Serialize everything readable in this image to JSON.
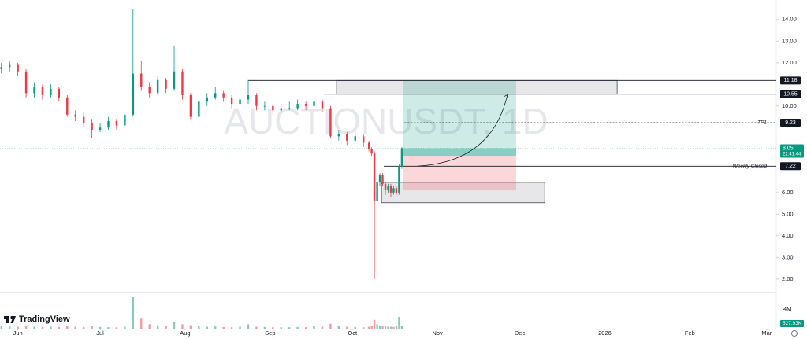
{
  "chart_data": {
    "type": "candlestick",
    "watermark": "AUCTIONUSDT, 1D",
    "logo_text": "TradingView",
    "up_color": "#089981",
    "down_color": "#f23645",
    "x": [
      -6,
      -3,
      0,
      3,
      6,
      9,
      12,
      15,
      18,
      21,
      24,
      27,
      30,
      33,
      36,
      39,
      42,
      45,
      48,
      51,
      54,
      57,
      60,
      63,
      66,
      69,
      72,
      75,
      78,
      81,
      84,
      87,
      90,
      93,
      96,
      99,
      102,
      105,
      108,
      111,
      114,
      117,
      120,
      123,
      126,
      128,
      129,
      130,
      131,
      132,
      133,
      134,
      135,
      136,
      137,
      138,
      139,
      140
    ],
    "open": [
      11.7,
      11.8,
      11.9,
      11.6,
      10.6,
      10.9,
      10.5,
      10.8,
      10.4,
      9.6,
      9.5,
      9.2,
      8.9,
      9.0,
      9.3,
      9.1,
      9.6,
      11.5,
      10.9,
      10.6,
      11.2,
      10.8,
      11.6,
      10.5,
      9.5,
      10.2,
      10.4,
      10.6,
      10.4,
      10.1,
      10.3,
      10.5,
      10.0,
      10.0,
      9.8,
      9.9,
      9.9,
      10.1,
      10.0,
      10.2,
      9.9,
      8.6,
      8.7,
      8.4,
      8.6,
      8.3,
      8.0,
      7.8,
      5.6,
      6.5,
      6.8,
      6.4,
      6.1,
      6.3,
      6.0,
      6.2,
      6.0,
      7.22
    ],
    "high": [
      12.0,
      12.1,
      12.0,
      11.7,
      11.1,
      11.0,
      11.0,
      10.9,
      10.5,
      9.8,
      9.7,
      9.4,
      9.2,
      9.5,
      9.4,
      9.8,
      14.5,
      12.1,
      11.1,
      11.4,
      11.3,
      12.8,
      11.7,
      10.6,
      10.3,
      10.6,
      10.9,
      10.7,
      10.5,
      10.5,
      11.2,
      10.6,
      10.2,
      10.1,
      10.1,
      10.2,
      10.3,
      10.2,
      10.5,
      10.3,
      10.0,
      8.9,
      8.8,
      8.8,
      8.7,
      8.4,
      8.1,
      7.9,
      6.6,
      6.9,
      6.9,
      6.5,
      6.4,
      6.4,
      6.3,
      6.3,
      7.3,
      8.1
    ],
    "low": [
      11.5,
      11.6,
      11.4,
      10.4,
      10.4,
      10.3,
      10.4,
      10.2,
      9.5,
      9.3,
      9.0,
      8.5,
      8.8,
      8.9,
      8.9,
      9.0,
      9.5,
      10.7,
      10.4,
      10.5,
      10.6,
      10.7,
      10.3,
      9.4,
      9.4,
      10.0,
      10.3,
      10.2,
      9.9,
      10.0,
      10.1,
      9.8,
      9.8,
      9.6,
      9.7,
      9.8,
      9.8,
      9.8,
      9.9,
      9.7,
      8.5,
      8.4,
      8.2,
      8.3,
      8.1,
      7.9,
      7.7,
      2.0,
      5.5,
      6.3,
      6.3,
      5.9,
      6.0,
      5.8,
      5.9,
      5.9,
      5.9,
      7.1
    ],
    "close": [
      11.8,
      11.9,
      11.6,
      10.6,
      10.9,
      10.5,
      10.8,
      10.4,
      9.6,
      9.5,
      9.2,
      8.9,
      9.0,
      9.3,
      9.1,
      9.6,
      11.5,
      10.9,
      10.6,
      11.2,
      10.8,
      11.6,
      10.5,
      9.5,
      10.2,
      10.4,
      10.6,
      10.4,
      10.1,
      10.3,
      10.5,
      10.0,
      10.0,
      9.8,
      9.9,
      9.9,
      10.1,
      10.0,
      10.2,
      9.9,
      8.6,
      8.7,
      8.4,
      8.6,
      8.3,
      8.0,
      7.8,
      5.6,
      6.5,
      6.8,
      6.4,
      6.1,
      6.3,
      6.0,
      6.2,
      6.0,
      7.22,
      8.05
    ],
    "volume": [
      500000,
      450000,
      400000,
      600000,
      400000,
      350000,
      400000,
      350000,
      500000,
      400000,
      350000,
      600000,
      350000,
      300000,
      300000,
      400000,
      6400000,
      2200000,
      900000,
      700000,
      600000,
      1300000,
      900000,
      700000,
      500000,
      400000,
      450000,
      350000,
      300000,
      400000,
      900000,
      400000,
      350000,
      300000,
      300000,
      300000,
      350000,
      300000,
      500000,
      400000,
      1000000,
      500000,
      400000,
      350000,
      300000,
      400000,
      500000,
      1800000,
      900000,
      600000,
      500000,
      450000,
      400000,
      400000,
      350000,
      500000,
      2400000,
      527930
    ],
    "volume_label": "527.93K",
    "xlim": [
      -6.5,
      276.5
    ],
    "xticks": [
      {
        "value": 0,
        "label": "Jun"
      },
      {
        "value": 30,
        "label": "Jul"
      },
      {
        "value": 61,
        "label": "Aug"
      },
      {
        "value": 92,
        "label": "Sep"
      },
      {
        "value": 122,
        "label": "Oct"
      },
      {
        "value": 153,
        "label": "Nov"
      },
      {
        "value": 183,
        "label": "Dec"
      },
      {
        "value": 214,
        "label": "2026"
      },
      {
        "value": 245,
        "label": "Feb"
      },
      {
        "value": 273,
        "label": "Mar"
      }
    ],
    "ylim": [
      1.45,
      14.9
    ],
    "yticks": [
      {
        "value": 2,
        "label": "2.00"
      },
      {
        "value": 3,
        "label": "3.00"
      },
      {
        "value": 4,
        "label": "4.00"
      },
      {
        "value": 5,
        "label": "5.00"
      },
      {
        "value": 6,
        "label": "6.00"
      },
      {
        "value": 10,
        "label": "10.00"
      },
      {
        "value": 12,
        "label": "12.00"
      },
      {
        "value": 13,
        "label": "13.00"
      },
      {
        "value": 14,
        "label": "14.00"
      }
    ],
    "volume_ylim": [
      0,
      6880000
    ],
    "volume_yticks": [
      {
        "value": 4000000,
        "label": "4M"
      }
    ],
    "zones": [
      {
        "x": [
          116.2,
          218.5
        ],
        "y": [
          10.55,
          11.18
        ]
      },
      {
        "x": [
          132.6,
          192.1
        ],
        "y": [
          5.53,
          6.47
        ]
      }
    ],
    "levels": [
      {
        "price": 11.18,
        "from": 84
      },
      {
        "price": 10.55,
        "from": 111.6
      },
      {
        "price": 9.23,
        "from": 141,
        "label": "TP1",
        "style": "dashed"
      },
      {
        "price": 7.22,
        "from": 133.4,
        "label": "Weekly Closed"
      }
    ],
    "current": {
      "price": 8.05,
      "countdown": "22:41:44"
    },
    "position": {
      "x": [
        140.6,
        181.7
      ],
      "entry": 7.7,
      "target": 11.18,
      "stop": 6.1
    }
  }
}
